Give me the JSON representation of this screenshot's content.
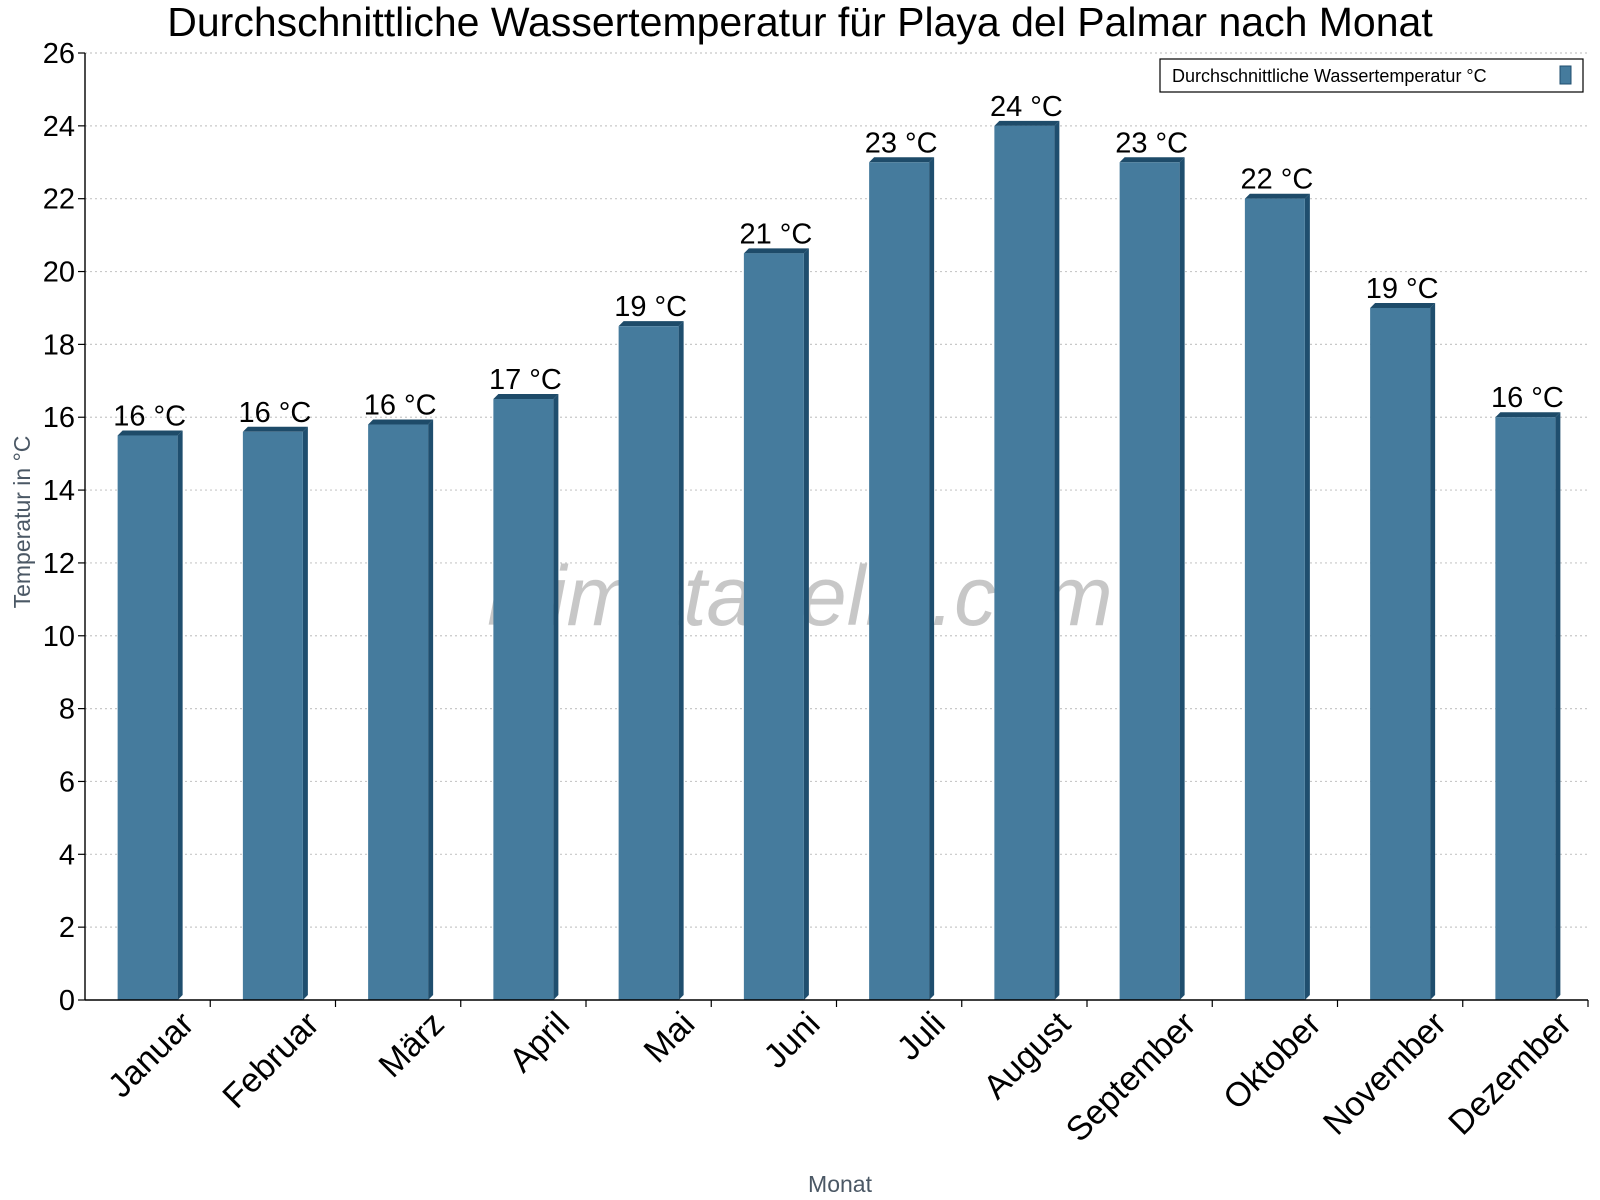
{
  "chart_data": {
    "type": "bar",
    "title": "Durchschnittliche Wassertemperatur für Playa del Palmar nach Monat",
    "xlabel": "Monat",
    "ylabel": "Temperatur in °C",
    "categories": [
      "Januar",
      "Februar",
      "März",
      "April",
      "Mai",
      "Juni",
      "Juli",
      "August",
      "September",
      "Oktober",
      "November",
      "Dezember"
    ],
    "series": [
      {
        "name": "Durchschnittliche Wassertemperatur °C",
        "values": [
          15.5,
          15.6,
          15.8,
          16.5,
          18.5,
          20.5,
          23.0,
          24.0,
          23.0,
          22.0,
          19.0,
          16.0
        ],
        "labels": [
          "16 °C",
          "16 °C",
          "16 °C",
          "17 °C",
          "19 °C",
          "21 °C",
          "23 °C",
          "24 °C",
          "23 °C",
          "22 °C",
          "19 °C",
          "16 °C"
        ],
        "color": "#457b9d"
      }
    ],
    "ylim": [
      0,
      26
    ],
    "yticks": [
      0,
      2,
      4,
      6,
      8,
      10,
      12,
      14,
      16,
      18,
      20,
      22,
      24,
      26
    ],
    "grid": true,
    "legend_position": "top-right",
    "colors": {
      "bar_face": "#457b9d",
      "bar_side": "#1f4e6e",
      "bar_top": "#1e4b69",
      "grid": "#c8c8c8",
      "axis": "#000000"
    }
  },
  "watermark": "klimatabelle.com"
}
